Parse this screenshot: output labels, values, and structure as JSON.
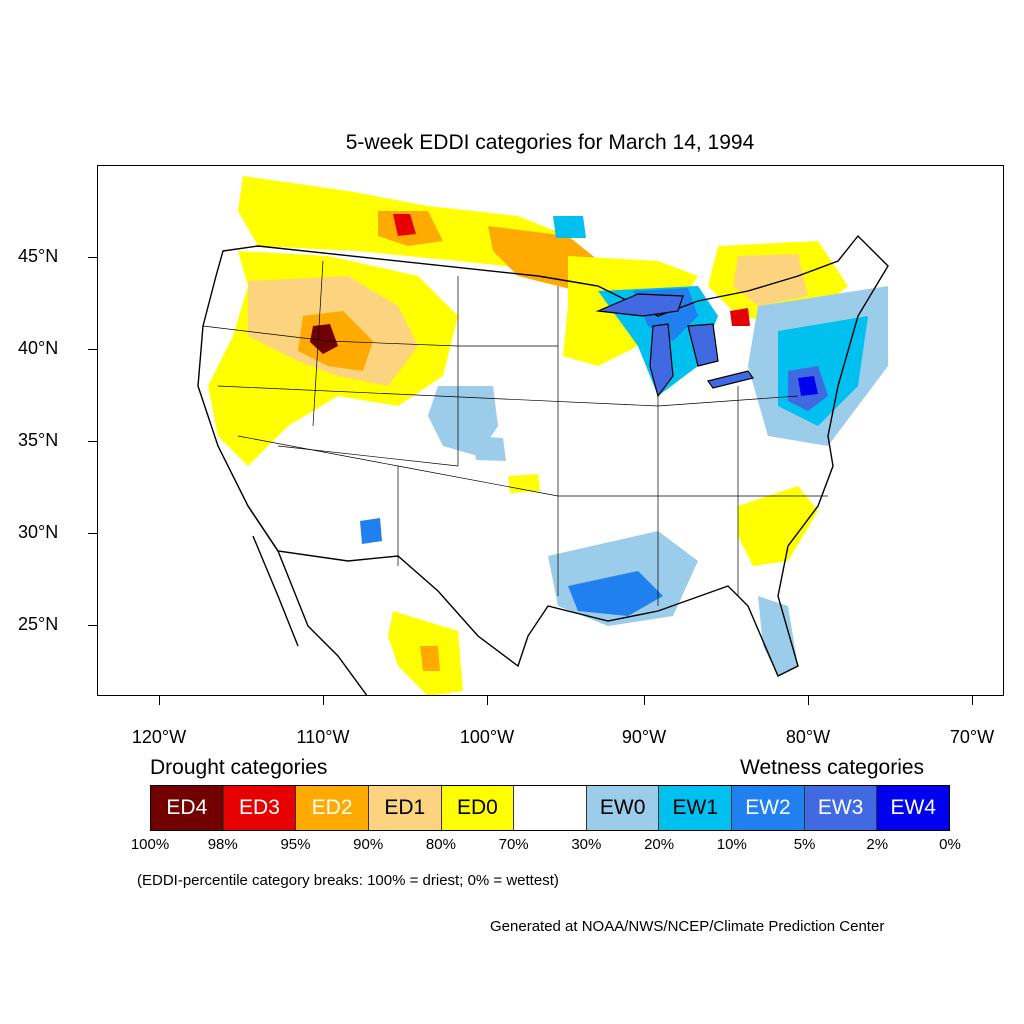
{
  "title": "5-week EDDI categories for March 14, 1994",
  "latitudes": [
    "45°N",
    "40°N",
    "35°N",
    "30°N",
    "25°N"
  ],
  "longitudes": [
    "120°W",
    "110°W",
    "100°W",
    "90°W",
    "80°W",
    "70°W"
  ],
  "legend": {
    "drought_heading": "Drought categories",
    "wetness_heading": "Wetness categories",
    "categories": [
      {
        "label": "ED4",
        "color": "#730000",
        "text_color": "#ffffff"
      },
      {
        "label": "ED3",
        "color": "#e60000",
        "text_color": "#ffffff"
      },
      {
        "label": "ED2",
        "color": "#ffaa00",
        "text_color": "#ffffff"
      },
      {
        "label": "ED1",
        "color": "#fcd37f",
        "text_color": "#000000"
      },
      {
        "label": "ED0",
        "color": "#ffff00",
        "text_color": "#000000"
      },
      {
        "label": "",
        "color": "#ffffff",
        "text_color": "#000000"
      },
      {
        "label": "EW0",
        "color": "#9bcdeb",
        "text_color": "#000000"
      },
      {
        "label": "EW1",
        "color": "#00c0f0",
        "text_color": "#000000"
      },
      {
        "label": "EW2",
        "color": "#2080f0",
        "text_color": "#ffffff"
      },
      {
        "label": "EW3",
        "color": "#4169e1",
        "text_color": "#ffffff"
      },
      {
        "label": "EW4",
        "color": "#0000f0",
        "text_color": "#ffffff"
      }
    ],
    "breaks": [
      "100%",
      "98%",
      "95%",
      "90%",
      "80%",
      "70%",
      "30%",
      "20%",
      "10%",
      "5%",
      "2%",
      "0%"
    ]
  },
  "note": "(EDDI-percentile category breaks: 100% = driest; 0% = wettest)",
  "credit": "Generated at NOAA/NWS/NCEP/Climate Prediction Center"
}
